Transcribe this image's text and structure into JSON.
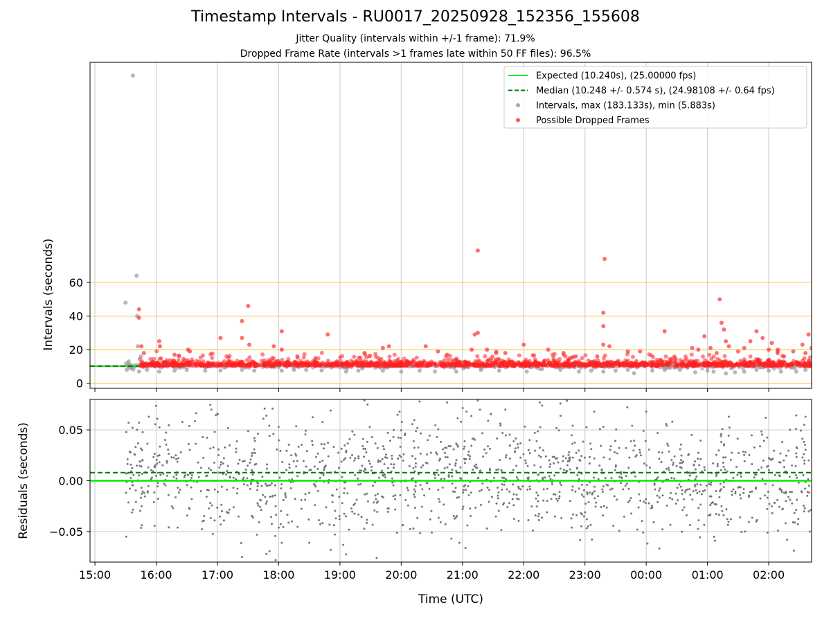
{
  "header": {
    "title": "Timestamp Intervals - RU0017_20250928_152356_155608",
    "subtitle_jitter": "Jitter Quality (intervals within +/-1 frame): 71.9%",
    "subtitle_dropped": "Dropped Frame Rate (intervals >1 frames late within 50 FF files): 96.5%"
  },
  "chart_data": [
    {
      "id": "intervals",
      "type": "scatter",
      "ylabel": "Intervals (seconds)",
      "xlabel": "",
      "xlim": [
        -0.08,
        11.7
      ],
      "ylim": [
        -3,
        191
      ],
      "yticks": [
        0,
        20,
        40,
        60
      ],
      "ytick_labels": [
        "0",
        "20",
        "40",
        "60"
      ],
      "threshold_lines": [
        0,
        20,
        40,
        60
      ],
      "grid": "vertical",
      "legend_position": "top-right",
      "legend": [
        {
          "label": "Expected (10.240s), (25.00000 fps)",
          "style": "solid-line",
          "color": "#00ee00"
        },
        {
          "label": "Median (10.248 +/- 0.574 s), (24.98108 +/- 0.64 fps)",
          "style": "dashed-line",
          "color": "#007700"
        },
        {
          "label": "Intervals, max (183.133s), min (5.883s)",
          "style": "point",
          "color": "#999999"
        },
        {
          "label": "Possible Dropped Frames",
          "style": "point",
          "color": "#ff3030"
        }
      ],
      "expected_interval": 10.24,
      "median_interval": 10.248,
      "series": [
        {
          "name": "Intervals",
          "color": "#999999",
          "points": [
            [
              0.5,
              48
            ],
            [
              0.62,
              183.1
            ],
            [
              0.68,
              64
            ],
            [
              0.69,
              40
            ],
            [
              0.7,
              22
            ],
            [
              0.52,
              8
            ],
            [
              0.55,
              13
            ],
            [
              0.58,
              11
            ],
            [
              0.6,
              9
            ],
            [
              0.65,
              10
            ],
            [
              0.72,
              7
            ],
            [
              0.75,
              16
            ],
            [
              0.85,
              8
            ],
            [
              1.05,
              7
            ],
            [
              1.3,
              7.5
            ],
            [
              1.5,
              8
            ],
            [
              1.8,
              7.5
            ],
            [
              2.05,
              7.6
            ],
            [
              2.4,
              8
            ],
            [
              2.6,
              7.5
            ],
            [
              3.05,
              7.5
            ],
            [
              3.25,
              8
            ],
            [
              3.45,
              8
            ],
            [
              3.7,
              7.6
            ],
            [
              4.1,
              7
            ],
            [
              4.3,
              7.5
            ],
            [
              4.7,
              7.5
            ],
            [
              5.0,
              7
            ],
            [
              5.3,
              7.5
            ],
            [
              5.55,
              7
            ],
            [
              5.9,
              7
            ],
            [
              6.3,
              8
            ],
            [
              6.6,
              7.5
            ],
            [
              7.05,
              7
            ],
            [
              7.3,
              8.5
            ],
            [
              7.6,
              8
            ],
            [
              7.9,
              7
            ],
            [
              8.1,
              7.5
            ],
            [
              8.3,
              7
            ],
            [
              8.5,
              7.5
            ],
            [
              8.7,
              8
            ],
            [
              8.8,
              6
            ],
            [
              9.1,
              7.5
            ],
            [
              9.3,
              8
            ],
            [
              9.55,
              8
            ],
            [
              9.8,
              6.5
            ],
            [
              10.0,
              7.5
            ],
            [
              10.1,
              7
            ],
            [
              10.3,
              5.9
            ],
            [
              10.45,
              6.5
            ],
            [
              10.6,
              7
            ],
            [
              10.8,
              8
            ],
            [
              11.0,
              7.5
            ],
            [
              11.2,
              7
            ],
            [
              11.45,
              7
            ],
            [
              11.6,
              8
            ]
          ]
        },
        {
          "name": "Possible Dropped Frames",
          "color": "#ff3030",
          "points": [
            [
              0.72,
              44
            ],
            [
              0.72,
              39
            ],
            [
              0.76,
              22
            ],
            [
              0.8,
              18
            ],
            [
              1.05,
              25
            ],
            [
              1.06,
              22
            ],
            [
              1.3,
              17
            ],
            [
              1.52,
              20
            ],
            [
              1.55,
              19
            ],
            [
              2.05,
              27
            ],
            [
              2.4,
              37
            ],
            [
              2.4,
              27
            ],
            [
              2.5,
              46
            ],
            [
              2.52,
              23
            ],
            [
              2.92,
              22
            ],
            [
              3.05,
              31
            ],
            [
              3.05,
              20
            ],
            [
              3.8,
              29
            ],
            [
              4.4,
              18
            ],
            [
              4.7,
              21
            ],
            [
              4.8,
              22
            ],
            [
              5.4,
              22
            ],
            [
              5.6,
              19
            ],
            [
              5.75,
              17
            ],
            [
              6.15,
              20
            ],
            [
              6.2,
              29
            ],
            [
              6.25,
              30
            ],
            [
              6.25,
              79
            ],
            [
              6.4,
              20
            ],
            [
              6.55,
              18
            ],
            [
              6.7,
              18
            ],
            [
              7.0,
              23
            ],
            [
              7.4,
              20
            ],
            [
              7.65,
              18
            ],
            [
              7.85,
              16
            ],
            [
              8.2,
              16
            ],
            [
              8.3,
              42
            ],
            [
              8.3,
              34
            ],
            [
              8.3,
              23
            ],
            [
              8.32,
              74
            ],
            [
              8.4,
              22
            ],
            [
              8.7,
              19
            ],
            [
              8.9,
              19
            ],
            [
              9.3,
              31
            ],
            [
              9.75,
              21
            ],
            [
              9.85,
              20
            ],
            [
              9.95,
              28
            ],
            [
              10.05,
              21
            ],
            [
              10.15,
              18
            ],
            [
              10.2,
              50
            ],
            [
              10.23,
              36
            ],
            [
              10.27,
              32
            ],
            [
              10.3,
              25
            ],
            [
              10.35,
              22
            ],
            [
              10.5,
              19
            ],
            [
              10.6,
              21
            ],
            [
              10.7,
              25
            ],
            [
              10.8,
              31
            ],
            [
              10.9,
              27
            ],
            [
              11.0,
              20
            ],
            [
              11.05,
              24
            ],
            [
              11.15,
              20
            ],
            [
              11.25,
              16
            ],
            [
              11.4,
              19
            ],
            [
              11.55,
              23
            ],
            [
              11.6,
              18
            ],
            [
              11.65,
              29
            ],
            [
              11.7,
              21
            ]
          ]
        }
      ]
    },
    {
      "id": "residuals",
      "type": "scatter",
      "ylabel": "Residuals (seconds)",
      "xlabel": "Time (UTC)",
      "xlim": [
        -0.08,
        11.7
      ],
      "ylim": [
        -0.08,
        0.08
      ],
      "yticks": [
        -0.05,
        0.0,
        0.05
      ],
      "ytick_labels": [
        "−0.05",
        "0.00",
        "0.05"
      ],
      "xticks": [
        0,
        1,
        2,
        3,
        4,
        5,
        6,
        7,
        8,
        9,
        10,
        11
      ],
      "xtick_labels": [
        "15:00",
        "16:00",
        "17:00",
        "18:00",
        "19:00",
        "20:00",
        "21:00",
        "22:00",
        "23:00",
        "00:00",
        "01:00",
        "02:00"
      ],
      "grid": "both",
      "expected_residual": 0.0,
      "median_residual": 0.008,
      "series": [
        {
          "name": "Residuals",
          "color": "#777777",
          "x_range": [
            0.5,
            11.7
          ],
          "count": 1400,
          "mean": 0.004,
          "std": 0.026,
          "example_points": [
            [
              0.55,
              0.057
            ],
            [
              0.88,
              0.063
            ],
            [
              1.02,
              0.061
            ],
            [
              1.35,
              -0.046
            ],
            [
              1.9,
              0.07
            ],
            [
              2.0,
              0.066
            ],
            [
              2.4,
              -0.075
            ],
            [
              2.75,
              0.061
            ],
            [
              2.8,
              0.064
            ],
            [
              2.8,
              -0.072
            ],
            [
              2.9,
              0.071
            ],
            [
              2.95,
              -0.078
            ],
            [
              3.0,
              -0.046
            ],
            [
              3.05,
              -0.061
            ],
            [
              3.5,
              -0.061
            ],
            [
              3.85,
              -0.068
            ],
            [
              4.4,
              0.079
            ],
            [
              4.45,
              0.075
            ],
            [
              4.6,
              -0.076
            ],
            [
              5.2,
              -0.047
            ],
            [
              5.3,
              0.078
            ],
            [
              5.5,
              -0.051
            ],
            [
              5.75,
              0.077
            ],
            [
              5.95,
              -0.061
            ],
            [
              6.05,
              -0.066
            ],
            [
              6.25,
              0.079
            ],
            [
              6.4,
              -0.047
            ],
            [
              6.7,
              0.07
            ],
            [
              7.15,
              -0.049
            ],
            [
              7.3,
              0.074
            ],
            [
              7.6,
              0.076
            ],
            [
              8.15,
              0.068
            ],
            [
              8.95,
              -0.051
            ],
            [
              9.0,
              0.068
            ],
            [
              10.35,
              0.063
            ],
            [
              10.95,
              0.062
            ],
            [
              11.15,
              -0.049
            ],
            [
              11.3,
              -0.058
            ],
            [
              11.6,
              0.063
            ]
          ]
        }
      ]
    }
  ]
}
